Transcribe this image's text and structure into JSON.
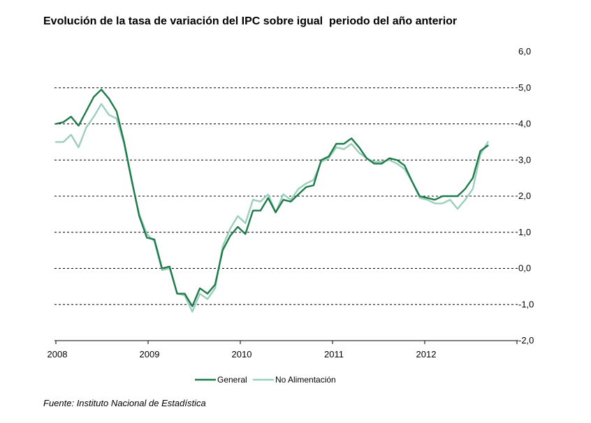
{
  "colors": {
    "general": "#1e7a4a",
    "no_alimentacion": "#9ccfbb",
    "grid": "#000000",
    "axis": "#000000"
  },
  "chart_data": {
    "type": "line",
    "title": "Evolución de la tasa de variación del IPC sobre igual  periodo del año anterior",
    "source": "Fuente: Instituto Nacional de Estadística",
    "x_tick_labels": [
      "2008",
      "2009",
      "2010",
      "2011",
      "2012"
    ],
    "y_tick_labels": [
      "6,0",
      "5,0",
      "4,0",
      "3,0",
      "2,0",
      "1,0",
      "0,0",
      "-1,0",
      "-2,0"
    ],
    "ylim": [
      -2,
      6
    ],
    "y_axis_position": "right",
    "grid": "horizontal dashed",
    "legend_position": "bottom",
    "x_start": "2008-01",
    "x_frequency": "monthly",
    "series": [
      {
        "name": "General",
        "color_key": "general",
        "values": [
          4.0,
          4.05,
          4.2,
          3.95,
          4.35,
          4.75,
          4.95,
          4.7,
          4.35,
          3.5,
          2.45,
          1.45,
          0.85,
          0.8,
          0.0,
          0.05,
          -0.7,
          -0.7,
          -1.05,
          -0.55,
          -0.7,
          -0.45,
          0.5,
          0.9,
          1.15,
          0.95,
          1.6,
          1.6,
          1.95,
          1.55,
          1.9,
          1.85,
          2.05,
          2.25,
          2.3,
          3.0,
          3.1,
          3.45,
          3.45,
          3.6,
          3.35,
          3.05,
          2.9,
          2.9,
          3.05,
          3.0,
          2.85,
          2.4,
          2.0,
          1.95,
          1.9,
          2.0,
          2.0,
          2.0,
          2.2,
          2.5,
          3.25,
          3.4
        ]
      },
      {
        "name": "No Alimentación",
        "color_key": "no_alimentacion",
        "values": [
          3.5,
          3.5,
          3.7,
          3.35,
          3.9,
          4.2,
          4.55,
          4.25,
          4.15,
          3.45,
          2.4,
          1.5,
          0.95,
          0.75,
          -0.05,
          -0.0,
          -0.7,
          -0.75,
          -1.2,
          -0.7,
          -0.85,
          -0.55,
          0.6,
          1.1,
          1.45,
          1.25,
          1.9,
          1.85,
          2.05,
          1.55,
          2.05,
          1.9,
          2.2,
          2.35,
          2.45,
          2.95,
          3.05,
          3.35,
          3.3,
          3.45,
          3.2,
          3.05,
          2.95,
          2.95,
          3.0,
          2.9,
          2.75,
          2.4,
          1.95,
          1.9,
          1.8,
          1.8,
          1.9,
          1.65,
          1.9,
          2.2,
          3.15,
          3.5
        ]
      }
    ]
  }
}
